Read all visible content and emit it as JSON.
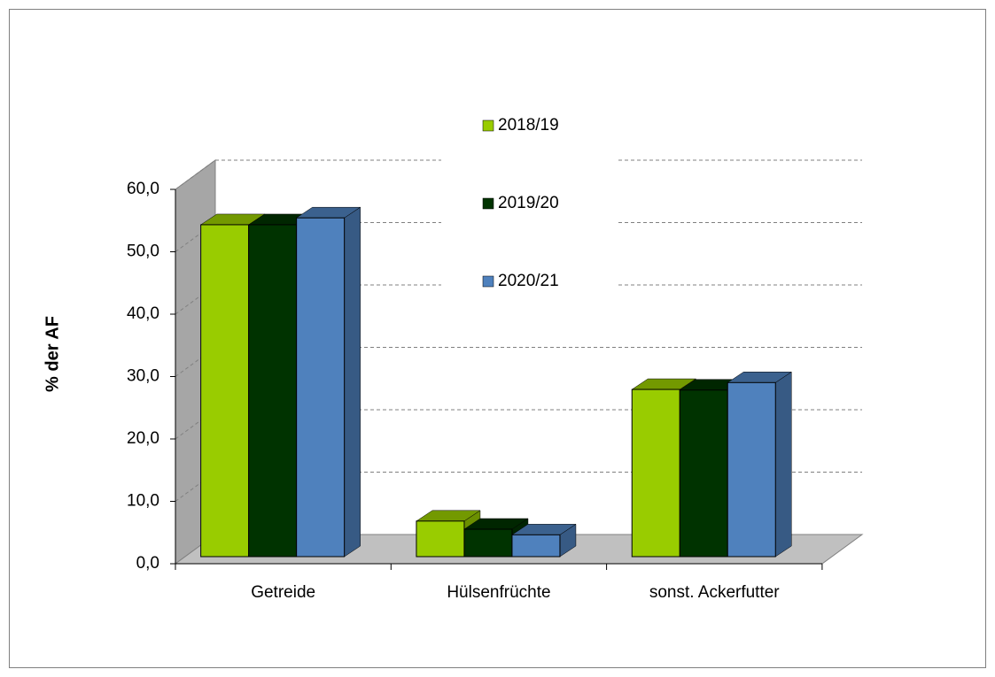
{
  "chart_data": {
    "type": "bar3d",
    "y_label": "% der AF",
    "categories": [
      "Getreide",
      "Hülsenfrüchte",
      "sonst. Ackerfutter"
    ],
    "series": [
      {
        "name": "2018/19",
        "color": "#99cc00",
        "values": [
          53.2,
          5.7,
          26.8
        ]
      },
      {
        "name": "2019/20",
        "color": "#003300",
        "values": [
          53.2,
          4.4,
          26.7
        ]
      },
      {
        "name": "2020/21",
        "color": "#4f81bd",
        "values": [
          54.3,
          3.5,
          27.9
        ]
      }
    ],
    "ylim": [
      0,
      60
    ],
    "yticks": [
      {
        "value": 0,
        "label": "0,0"
      },
      {
        "value": 10,
        "label": "10,0"
      },
      {
        "value": 20,
        "label": "20,0"
      },
      {
        "value": 30,
        "label": "30,0"
      },
      {
        "value": 40,
        "label": "40,0"
      },
      {
        "value": 50,
        "label": "50,0"
      },
      {
        "value": 60,
        "label": "60,0"
      }
    ],
    "grid": true
  }
}
